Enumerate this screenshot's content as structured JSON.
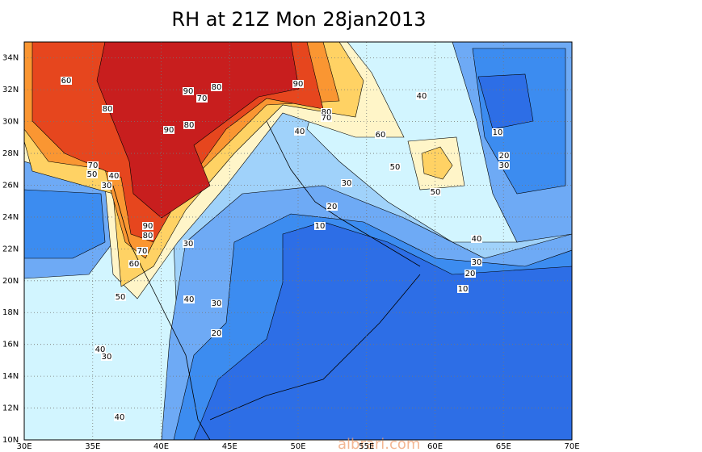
{
  "title": "RH at 21Z Mon 28jan2013",
  "x_axis": {
    "labels": [
      "30E",
      "35E",
      "40E",
      "45E",
      "50E",
      "55E",
      "60E",
      "65E",
      "70E"
    ]
  },
  "y_axis": {
    "labels": [
      "10N",
      "12N",
      "14N",
      "16N",
      "18N",
      "20N",
      "22N",
      "24N",
      "26N",
      "28N",
      "30N",
      "32N",
      "34N"
    ]
  },
  "contour_labels": [
    "60",
    "90",
    "80",
    "70",
    "80",
    "80",
    "90",
    "90",
    "80",
    "70",
    "40",
    "40",
    "60",
    "10",
    "20",
    "30",
    "70",
    "50",
    "40",
    "30",
    "50",
    "30",
    "50",
    "20",
    "10",
    "90",
    "80",
    "70",
    "30",
    "60",
    "40",
    "30",
    "20",
    "10",
    "50",
    "40",
    "30",
    "20",
    "40",
    "30",
    "40"
  ],
  "watermark": "albrari.com"
}
